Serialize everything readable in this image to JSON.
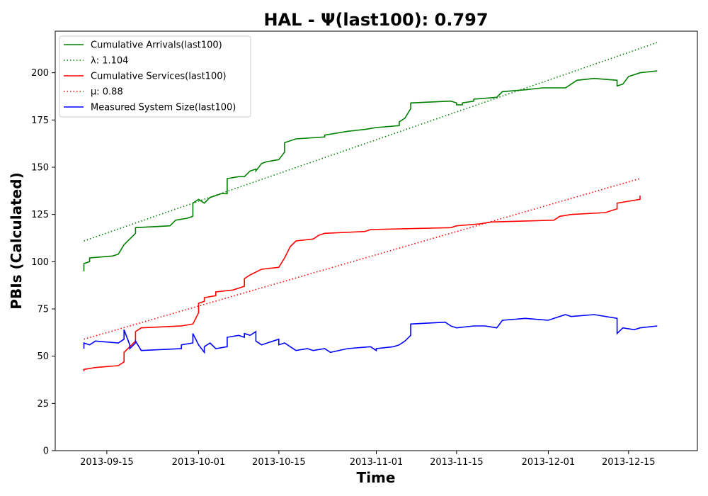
{
  "chart_data": {
    "type": "line",
    "title": "HAL -  Ψ(last100): 0.797",
    "xlabel": "Time",
    "ylabel": "PBIs (Calculated)",
    "x_range": [
      "2013-09-06",
      "2013-12-27"
    ],
    "ylim": [
      0,
      222
    ],
    "x_ticks": [
      "2013-09-15",
      "2013-10-01",
      "2013-10-15",
      "2013-11-01",
      "2013-11-15",
      "2013-12-01",
      "2013-12-15"
    ],
    "y_ticks": [
      0,
      25,
      50,
      75,
      100,
      125,
      150,
      175,
      200
    ],
    "grid": false,
    "legend_position": "top-left",
    "series": [
      {
        "name": "Cumulative Arrivals(last100)",
        "color": "#008000",
        "style": "solid",
        "points": [
          [
            "2013-09-11",
            95
          ],
          [
            "2013-09-11",
            99
          ],
          [
            "2013-09-12",
            100
          ],
          [
            "2013-09-12",
            102
          ],
          [
            "2013-09-16",
            103
          ],
          [
            "2013-09-17",
            104
          ],
          [
            "2013-09-18",
            109
          ],
          [
            "2013-09-19",
            112
          ],
          [
            "2013-09-20",
            115
          ],
          [
            "2013-09-20",
            118
          ],
          [
            "2013-09-26",
            119
          ],
          [
            "2013-09-27",
            122
          ],
          [
            "2013-09-29",
            123
          ],
          [
            "2013-09-30",
            124
          ],
          [
            "2013-09-30",
            131
          ],
          [
            "2013-10-01",
            133
          ],
          [
            "2013-10-02",
            131
          ],
          [
            "2013-10-03",
            134
          ],
          [
            "2013-10-05",
            136
          ],
          [
            "2013-10-06",
            136
          ],
          [
            "2013-10-06",
            144
          ],
          [
            "2013-10-08",
            145
          ],
          [
            "2013-10-09",
            145
          ],
          [
            "2013-10-10",
            148
          ],
          [
            "2013-10-11",
            149
          ],
          [
            "2013-10-11",
            148
          ],
          [
            "2013-10-12",
            152
          ],
          [
            "2013-10-13",
            153
          ],
          [
            "2013-10-15",
            154
          ],
          [
            "2013-10-16",
            158
          ],
          [
            "2013-10-16",
            163
          ],
          [
            "2013-10-18",
            165
          ],
          [
            "2013-10-23",
            166
          ],
          [
            "2013-10-23",
            167
          ],
          [
            "2013-10-25",
            168
          ],
          [
            "2013-10-27",
            169
          ],
          [
            "2013-10-30",
            170
          ],
          [
            "2013-11-01",
            171
          ],
          [
            "2013-11-05",
            172
          ],
          [
            "2013-11-05",
            174
          ],
          [
            "2013-11-06",
            176
          ],
          [
            "2013-11-07",
            181
          ],
          [
            "2013-11-07",
            184
          ],
          [
            "2013-11-14",
            185
          ],
          [
            "2013-11-15",
            184
          ],
          [
            "2013-11-15",
            183
          ],
          [
            "2013-11-16",
            183
          ],
          [
            "2013-11-16",
            184
          ],
          [
            "2013-11-18",
            185
          ],
          [
            "2013-11-18",
            186
          ],
          [
            "2013-11-22",
            187
          ],
          [
            "2013-11-23",
            190
          ],
          [
            "2013-11-27",
            191
          ],
          [
            "2013-11-30",
            192
          ],
          [
            "2013-12-04",
            192
          ],
          [
            "2013-12-05",
            194
          ],
          [
            "2013-12-06",
            196
          ],
          [
            "2013-12-09",
            197
          ],
          [
            "2013-12-13",
            196
          ],
          [
            "2013-12-13",
            193
          ],
          [
            "2013-12-14",
            194
          ],
          [
            "2013-12-15",
            198
          ],
          [
            "2013-12-17",
            200
          ],
          [
            "2013-12-20",
            201
          ]
        ]
      },
      {
        "name": "λ: 1.104",
        "color": "#008000",
        "style": "dotted",
        "points": [
          [
            "2013-09-11",
            111
          ],
          [
            "2013-12-20",
            216
          ]
        ]
      },
      {
        "name": "Cumulative Services(last100)",
        "color": "#ff0000",
        "style": "solid",
        "points": [
          [
            "2013-09-11",
            42
          ],
          [
            "2013-09-11",
            43
          ],
          [
            "2013-09-13",
            44
          ],
          [
            "2013-09-17",
            45
          ],
          [
            "2013-09-18",
            47
          ],
          [
            "2013-09-18",
            52
          ],
          [
            "2013-09-19",
            55
          ],
          [
            "2013-09-20",
            58
          ],
          [
            "2013-09-20",
            63
          ],
          [
            "2013-09-21",
            65
          ],
          [
            "2013-09-28",
            66
          ],
          [
            "2013-09-30",
            67
          ],
          [
            "2013-10-01",
            73
          ],
          [
            "2013-10-01",
            78
          ],
          [
            "2013-10-02",
            79
          ],
          [
            "2013-10-02",
            81
          ],
          [
            "2013-10-04",
            82
          ],
          [
            "2013-10-04",
            84
          ],
          [
            "2013-10-07",
            85
          ],
          [
            "2013-10-09",
            87
          ],
          [
            "2013-10-09",
            91
          ],
          [
            "2013-10-10",
            93
          ],
          [
            "2013-10-12",
            96
          ],
          [
            "2013-10-15",
            97
          ],
          [
            "2013-10-16",
            102
          ],
          [
            "2013-10-17",
            108
          ],
          [
            "2013-10-18",
            111
          ],
          [
            "2013-10-21",
            112
          ],
          [
            "2013-10-22",
            114
          ],
          [
            "2013-10-23",
            115
          ],
          [
            "2013-10-30",
            116
          ],
          [
            "2013-10-31",
            117
          ],
          [
            "2013-11-14",
            118
          ],
          [
            "2013-11-15",
            119
          ],
          [
            "2013-11-19",
            120
          ],
          [
            "2013-11-21",
            121
          ],
          [
            "2013-12-02",
            122
          ],
          [
            "2013-12-03",
            124
          ],
          [
            "2013-12-05",
            125
          ],
          [
            "2013-12-11",
            126
          ],
          [
            "2013-12-12",
            127
          ],
          [
            "2013-12-13",
            128
          ],
          [
            "2013-12-13",
            131
          ],
          [
            "2013-12-15",
            132
          ],
          [
            "2013-12-17",
            133
          ],
          [
            "2013-12-17",
            135
          ]
        ]
      },
      {
        "name": "μ: 0.88",
        "color": "#ff0000",
        "style": "dotted",
        "points": [
          [
            "2013-09-11",
            59
          ],
          [
            "2013-12-17",
            144
          ]
        ]
      },
      {
        "name": "Measured System Size(last100)",
        "color": "#0000ff",
        "style": "solid",
        "points": [
          [
            "2013-09-11",
            54
          ],
          [
            "2013-09-11",
            57
          ],
          [
            "2013-09-12",
            56
          ],
          [
            "2013-09-13",
            58
          ],
          [
            "2013-09-17",
            57
          ],
          [
            "2013-09-18",
            59
          ],
          [
            "2013-09-18",
            64
          ],
          [
            "2013-09-19",
            56
          ],
          [
            "2013-09-19",
            54
          ],
          [
            "2013-09-20",
            57
          ],
          [
            "2013-09-20",
            58
          ],
          [
            "2013-09-21",
            53
          ],
          [
            "2013-09-28",
            54
          ],
          [
            "2013-09-28",
            56
          ],
          [
            "2013-09-30",
            57
          ],
          [
            "2013-09-30",
            62
          ],
          [
            "2013-10-01",
            56
          ],
          [
            "2013-10-02",
            52
          ],
          [
            "2013-10-02",
            55
          ],
          [
            "2013-10-03",
            57
          ],
          [
            "2013-10-04",
            54
          ],
          [
            "2013-10-06",
            55
          ],
          [
            "2013-10-06",
            60
          ],
          [
            "2013-10-08",
            61
          ],
          [
            "2013-10-09",
            60
          ],
          [
            "2013-10-09",
            62
          ],
          [
            "2013-10-10",
            61
          ],
          [
            "2013-10-11",
            63
          ],
          [
            "2013-10-11",
            58
          ],
          [
            "2013-10-12",
            56
          ],
          [
            "2013-10-13",
            57
          ],
          [
            "2013-10-15",
            59
          ],
          [
            "2013-10-15",
            56
          ],
          [
            "2013-10-16",
            57
          ],
          [
            "2013-10-17",
            55
          ],
          [
            "2013-10-18",
            53
          ],
          [
            "2013-10-20",
            54
          ],
          [
            "2013-10-21",
            53
          ],
          [
            "2013-10-23",
            54
          ],
          [
            "2013-10-24",
            52
          ],
          [
            "2013-10-27",
            54
          ],
          [
            "2013-10-31",
            55
          ],
          [
            "2013-11-01",
            53
          ],
          [
            "2013-11-01",
            54
          ],
          [
            "2013-11-04",
            55
          ],
          [
            "2013-11-05",
            56
          ],
          [
            "2013-11-06",
            58
          ],
          [
            "2013-11-07",
            61
          ],
          [
            "2013-11-07",
            67
          ],
          [
            "2013-11-13",
            68
          ],
          [
            "2013-11-14",
            66
          ],
          [
            "2013-11-15",
            65
          ],
          [
            "2013-11-18",
            66
          ],
          [
            "2013-11-20",
            66
          ],
          [
            "2013-11-22",
            65
          ],
          [
            "2013-11-23",
            69
          ],
          [
            "2013-11-27",
            70
          ],
          [
            "2013-12-01",
            69
          ],
          [
            "2013-12-02",
            70
          ],
          [
            "2013-12-04",
            72
          ],
          [
            "2013-12-05",
            71
          ],
          [
            "2013-12-09",
            72
          ],
          [
            "2013-12-13",
            70
          ],
          [
            "2013-12-13",
            62
          ],
          [
            "2013-12-14",
            65
          ],
          [
            "2013-12-16",
            64
          ],
          [
            "2013-12-17",
            65
          ],
          [
            "2013-12-20",
            66
          ]
        ]
      }
    ]
  }
}
